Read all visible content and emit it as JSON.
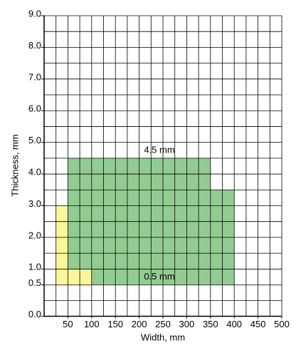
{
  "chart_data": {
    "type": "region",
    "xlabel": "Width, mm",
    "ylabel": "Thickness, mm",
    "xlim": [
      0,
      500
    ],
    "ylim": [
      0,
      9
    ],
    "xticks": [
      50,
      100,
      150,
      200,
      250,
      300,
      350,
      400,
      450,
      500
    ],
    "yticks": [
      {
        "value": 0,
        "label": "0.0"
      },
      0.5,
      {
        "value": 1,
        "label": "1.0"
      },
      {
        "value": 2,
        "label": "2.0"
      },
      {
        "value": 3,
        "label": "3.0"
      },
      {
        "value": 4,
        "label": "4.0"
      },
      {
        "value": 5,
        "label": "5.0"
      },
      {
        "value": 6,
        "label": "6.0"
      },
      {
        "value": 7,
        "label": "7.0"
      },
      {
        "value": 8,
        "label": "8.0"
      },
      {
        "value": 9,
        "label": "9.0"
      }
    ],
    "grid": true,
    "grid_step_x": 25,
    "grid_step_y": 0.5,
    "series": [
      {
        "color": "#fbf59b",
        "x": [
          25,
          50,
          50,
          100,
          100,
          25
        ],
        "y": [
          3.0,
          3.0,
          1.0,
          1.0,
          0.5,
          0.5
        ]
      },
      {
        "color": "#93cc93",
        "x": [
          50,
          350,
          350,
          400,
          400,
          100,
          100,
          50
        ],
        "y": [
          4.5,
          4.5,
          3.5,
          3.5,
          0.5,
          0.5,
          1.0,
          1.0
        ]
      }
    ],
    "annotations": [
      "4.5 mm",
      "0.5 mm"
    ]
  }
}
